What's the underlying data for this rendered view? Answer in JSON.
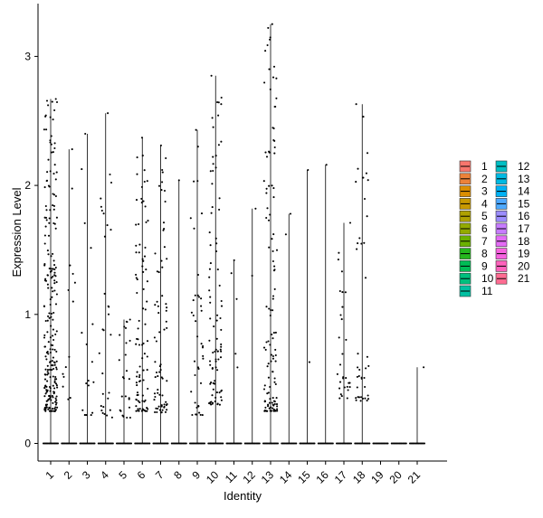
{
  "chart_data": {
    "type": "violin",
    "xlabel": "Identity",
    "ylabel": "Expression Level",
    "ylim": [
      -0.15,
      3.42
    ],
    "yticks": [
      0,
      1,
      2,
      3
    ],
    "grid": false,
    "legend_position": "right",
    "categories": [
      "1",
      "2",
      "3",
      "4",
      "5",
      "6",
      "7",
      "8",
      "9",
      "10",
      "11",
      "12",
      "13",
      "14",
      "15",
      "16",
      "17",
      "18",
      "19",
      "20",
      "21"
    ],
    "colors": [
      "#F8766D",
      "#EC8239",
      "#DB8E00",
      "#C79800",
      "#AFA100",
      "#93AA00",
      "#6BB100",
      "#25B71D",
      "#00BC56",
      "#00BF7D",
      "#00C0A1",
      "#00BFC4",
      "#00BAE3",
      "#00B2F5",
      "#4EA9FF",
      "#9C8DFF",
      "#C77CFF",
      "#E46CF6",
      "#F763E0",
      "#FF62BC",
      "#FF6C92"
    ],
    "max_values": [
      2.67,
      2.28,
      2.4,
      2.56,
      0.96,
      2.37,
      2.31,
      2.04,
      2.43,
      2.85,
      1.42,
      1.82,
      3.25,
      1.78,
      2.12,
      2.16,
      1.71,
      2.63,
      0.0,
      0.0,
      0.59
    ],
    "expressing_clusters": {
      "1": {
        "n": 230,
        "min": 0.25,
        "max": 2.67
      },
      "2": {
        "n": 14,
        "min": 0.28,
        "max": 2.28
      },
      "3": {
        "n": 18,
        "min": 0.22,
        "max": 2.4
      },
      "4": {
        "n": 30,
        "min": 0.2,
        "max": 2.56
      },
      "5": {
        "n": 25,
        "min": 0.2,
        "max": 0.96
      },
      "6": {
        "n": 90,
        "min": 0.25,
        "max": 2.37
      },
      "7": {
        "n": 70,
        "min": 0.24,
        "max": 2.31
      },
      "8": {
        "n": 1,
        "min": 2.04,
        "max": 2.04
      },
      "9": {
        "n": 40,
        "min": 0.22,
        "max": 2.43
      },
      "10": {
        "n": 90,
        "min": 0.3,
        "max": 2.85
      },
      "11": {
        "n": 5,
        "min": 0.57,
        "max": 1.42
      },
      "12": {
        "n": 2,
        "min": 1.3,
        "max": 1.82
      },
      "13": {
        "n": 120,
        "min": 0.25,
        "max": 3.25
      },
      "14": {
        "n": 2,
        "min": 1.62,
        "max": 1.78
      },
      "15": {
        "n": 2,
        "min": 0.63,
        "max": 2.12
      },
      "16": {
        "n": 1,
        "min": 2.16,
        "max": 2.16
      },
      "17": {
        "n": 30,
        "min": 0.35,
        "max": 1.71
      },
      "18": {
        "n": 40,
        "min": 0.33,
        "max": 2.63
      },
      "19": {
        "n": 0,
        "min": 0,
        "max": 0
      },
      "20": {
        "n": 0,
        "min": 0,
        "max": 0
      },
      "21": {
        "n": 1,
        "min": 0.59,
        "max": 0.59
      }
    }
  }
}
